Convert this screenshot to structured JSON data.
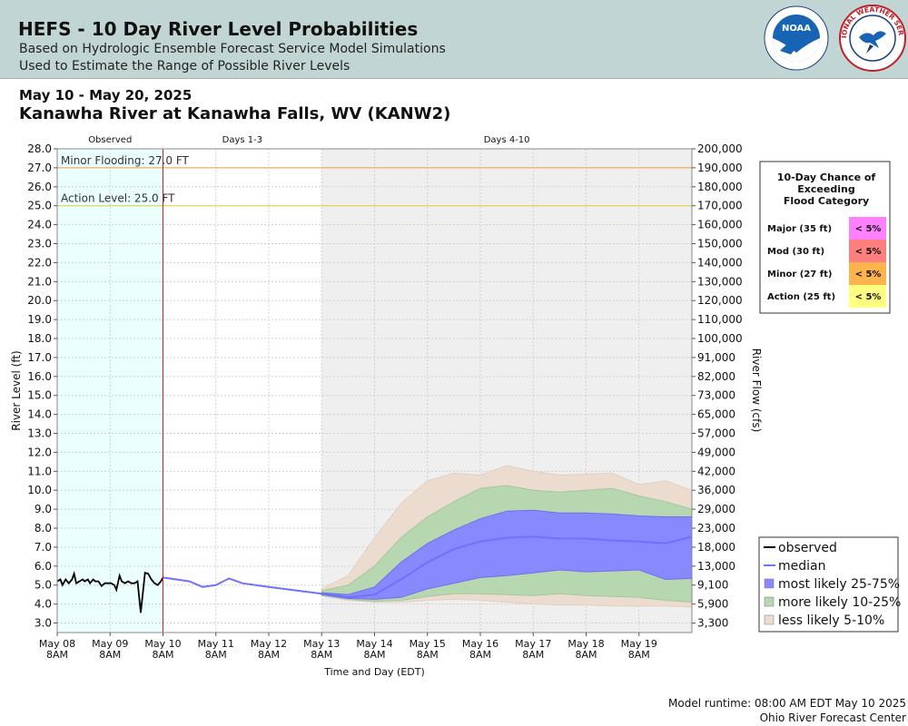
{
  "header": {
    "title": "HEFS - 10 Day River Level Probabilities",
    "subtitle1": "Based on Hydrologic Ensemble Forecast Service Model Simulations",
    "subtitle2": "Used to Estimate the Range of Possible River Levels",
    "noaa_logo_text": "NOAA",
    "nws_logo_text": "NATIONAL WEATHER SERVICE"
  },
  "date_range": "May 10 - May 20, 2025",
  "location": "Kanawha River at Kanawha Falls, WV (KANW2)",
  "footer": {
    "runtime": "Model runtime: 08:00 AM EDT May 10 2025",
    "center": "Ohio River Forecast Center"
  },
  "chart_data": {
    "type": "area",
    "period_labels": [
      "Observed",
      "Days 1-3",
      "Days 4-10"
    ],
    "ylabel": "River Level (ft)",
    "y2label": "River Flow (cfs)",
    "xlabel": "Time and Day (EDT)",
    "ylim": [
      2.5,
      28.0
    ],
    "y_ticks": [
      "3.0",
      "4.0",
      "5.0",
      "6.0",
      "7.0",
      "8.0",
      "9.0",
      "10.0",
      "11.0",
      "12.0",
      "13.0",
      "14.0",
      "15.0",
      "16.0",
      "17.0",
      "18.0",
      "19.0",
      "20.0",
      "21.0",
      "22.0",
      "23.0",
      "24.0",
      "25.0",
      "26.0",
      "27.0",
      "28.0"
    ],
    "y2_ticks": [
      {
        "stage": 3.0,
        "label": "3,300"
      },
      {
        "stage": 4.0,
        "label": "5,900"
      },
      {
        "stage": 5.0,
        "label": "9,100"
      },
      {
        "stage": 6.0,
        "label": "13,000"
      },
      {
        "stage": 7.0,
        "label": "18,000"
      },
      {
        "stage": 8.0,
        "label": "23,000"
      },
      {
        "stage": 9.0,
        "label": "29,000"
      },
      {
        "stage": 10.0,
        "label": "36,000"
      },
      {
        "stage": 11.0,
        "label": "42,000"
      },
      {
        "stage": 12.0,
        "label": "49,000"
      },
      {
        "stage": 13.0,
        "label": "57,000"
      },
      {
        "stage": 14.0,
        "label": "65,000"
      },
      {
        "stage": 15.0,
        "label": "73,000"
      },
      {
        "stage": 16.0,
        "label": "82,000"
      },
      {
        "stage": 17.0,
        "label": "91,000"
      },
      {
        "stage": 18.0,
        "label": "100,000"
      },
      {
        "stage": 19.0,
        "label": "110,000"
      },
      {
        "stage": 20.0,
        "label": "120,000"
      },
      {
        "stage": 21.0,
        "label": "130,000"
      },
      {
        "stage": 22.0,
        "label": "140,000"
      },
      {
        "stage": 23.0,
        "label": "150,000"
      },
      {
        "stage": 24.0,
        "label": "160,000"
      },
      {
        "stage": 25.0,
        "label": "170,000"
      },
      {
        "stage": 26.0,
        "label": "180,000"
      },
      {
        "stage": 27.0,
        "label": "190,000"
      },
      {
        "stage": 28.0,
        "label": "200,000"
      }
    ],
    "x_ticks": [
      {
        "line1": "May 08",
        "line2": "8AM"
      },
      {
        "line1": "May 09",
        "line2": "8AM"
      },
      {
        "line1": "May 10",
        "line2": "8AM"
      },
      {
        "line1": "May 11",
        "line2": "8AM"
      },
      {
        "line1": "May 12",
        "line2": "8AM"
      },
      {
        "line1": "May 13",
        "line2": "8AM"
      },
      {
        "line1": "May 14",
        "line2": "8AM"
      },
      {
        "line1": "May 15",
        "line2": "8AM"
      },
      {
        "line1": "May 16",
        "line2": "8AM"
      },
      {
        "line1": "May 17",
        "line2": "8AM"
      },
      {
        "line1": "May 18",
        "line2": "8AM"
      },
      {
        "line1": "May 19",
        "line2": "8AM"
      }
    ],
    "xlim": [
      0,
      12
    ],
    "x_units": "days since May 08 8AM",
    "thresholds": [
      {
        "label": "Minor Flooding: 27.0 FT",
        "value": 27.0,
        "color": "#f0a040"
      },
      {
        "label": "Action Level: 25.0 FT",
        "value": 25.0,
        "color": "#e8cc40"
      }
    ],
    "observed": [
      [
        0,
        5.2
      ],
      [
        0.06,
        5.3
      ],
      [
        0.1,
        5.0
      ],
      [
        0.16,
        5.3
      ],
      [
        0.22,
        5.1
      ],
      [
        0.28,
        5.3
      ],
      [
        0.32,
        5.6
      ],
      [
        0.36,
        5.1
      ],
      [
        0.42,
        5.2
      ],
      [
        0.48,
        5.3
      ],
      [
        0.52,
        5.2
      ],
      [
        0.58,
        5.3
      ],
      [
        0.62,
        5.1
      ],
      [
        0.68,
        5.3
      ],
      [
        0.72,
        5.2
      ],
      [
        0.78,
        5.2
      ],
      [
        0.84,
        4.95
      ],
      [
        0.9,
        5.1
      ],
      [
        0.96,
        5.1
      ],
      [
        1.02,
        5.1
      ],
      [
        1.08,
        5.0
      ],
      [
        1.12,
        4.75
      ],
      [
        1.18,
        5.5
      ],
      [
        1.22,
        5.2
      ],
      [
        1.28,
        5.1
      ],
      [
        1.34,
        5.2
      ],
      [
        1.4,
        5.1
      ],
      [
        1.46,
        5.1
      ],
      [
        1.52,
        5.2
      ],
      [
        1.58,
        3.55
      ],
      [
        1.66,
        5.65
      ],
      [
        1.72,
        5.6
      ],
      [
        1.78,
        5.3
      ],
      [
        1.84,
        5.1
      ],
      [
        1.9,
        5.0
      ],
      [
        1.96,
        5.2
      ],
      [
        2.0,
        5.4
      ]
    ],
    "median": [
      [
        2.0,
        5.4
      ],
      [
        2.5,
        5.2
      ],
      [
        2.75,
        4.9
      ],
      [
        3.0,
        5.0
      ],
      [
        3.25,
        5.35
      ],
      [
        3.5,
        5.1
      ],
      [
        4.0,
        4.9
      ],
      [
        5.0,
        4.55
      ],
      [
        5.5,
        4.35
      ],
      [
        6.0,
        4.5
      ],
      [
        6.5,
        5.3
      ],
      [
        7.0,
        6.2
      ],
      [
        7.5,
        6.9
      ],
      [
        8.0,
        7.3
      ],
      [
        8.5,
        7.5
      ],
      [
        9.0,
        7.55
      ],
      [
        9.5,
        7.45
      ],
      [
        10.0,
        7.45
      ],
      [
        10.5,
        7.35
      ],
      [
        11.0,
        7.3
      ],
      [
        11.5,
        7.2
      ],
      [
        12.0,
        7.55
      ]
    ],
    "band_25_75": {
      "upper": [
        [
          5.0,
          4.6
        ],
        [
          5.5,
          4.5
        ],
        [
          6.0,
          4.9
        ],
        [
          6.5,
          6.2
        ],
        [
          7.0,
          7.2
        ],
        [
          7.5,
          7.9
        ],
        [
          8.0,
          8.5
        ],
        [
          8.5,
          8.9
        ],
        [
          9.0,
          8.95
        ],
        [
          9.5,
          8.8
        ],
        [
          10.0,
          8.8
        ],
        [
          10.5,
          8.75
        ],
        [
          11.0,
          8.65
        ],
        [
          11.5,
          8.6
        ],
        [
          12.0,
          8.6
        ]
      ],
      "lower": [
        [
          5.0,
          4.5
        ],
        [
          5.5,
          4.3
        ],
        [
          6.0,
          4.25
        ],
        [
          6.5,
          4.35
        ],
        [
          7.0,
          4.8
        ],
        [
          7.5,
          5.1
        ],
        [
          8.0,
          5.4
        ],
        [
          8.5,
          5.5
        ],
        [
          9.0,
          5.65
        ],
        [
          9.5,
          5.8
        ],
        [
          10.0,
          5.7
        ],
        [
          10.5,
          5.75
        ],
        [
          11.0,
          5.8
        ],
        [
          11.5,
          5.3
        ],
        [
          12.0,
          5.35
        ]
      ]
    },
    "band_10_25": {
      "upper": [
        [
          5.0,
          4.7
        ],
        [
          5.5,
          5.0
        ],
        [
          6.0,
          6.0
        ],
        [
          6.5,
          7.5
        ],
        [
          7.0,
          8.6
        ],
        [
          7.5,
          9.4
        ],
        [
          8.0,
          10.1
        ],
        [
          8.5,
          10.25
        ],
        [
          9.0,
          10.0
        ],
        [
          9.5,
          9.9
        ],
        [
          10.0,
          10.0
        ],
        [
          10.5,
          10.1
        ],
        [
          11.0,
          9.7
        ],
        [
          11.5,
          9.4
        ],
        [
          12.0,
          9.0
        ]
      ],
      "lower": [
        [
          5.0,
          4.45
        ],
        [
          5.5,
          4.25
        ],
        [
          6.0,
          4.15
        ],
        [
          6.5,
          4.2
        ],
        [
          7.0,
          4.4
        ],
        [
          7.5,
          4.55
        ],
        [
          8.0,
          4.55
        ],
        [
          8.5,
          4.5
        ],
        [
          9.0,
          4.45
        ],
        [
          9.5,
          4.55
        ],
        [
          10.0,
          4.45
        ],
        [
          10.5,
          4.4
        ],
        [
          11.0,
          4.35
        ],
        [
          11.5,
          4.2
        ],
        [
          12.0,
          4.1
        ]
      ]
    },
    "band_5_10": {
      "upper": [
        [
          5.0,
          4.8
        ],
        [
          5.5,
          5.5
        ],
        [
          6.0,
          7.5
        ],
        [
          6.5,
          9.3
        ],
        [
          7.0,
          10.5
        ],
        [
          7.5,
          10.9
        ],
        [
          8.0,
          10.8
        ],
        [
          8.5,
          11.3
        ],
        [
          9.0,
          11.0
        ],
        [
          9.5,
          10.8
        ],
        [
          10.0,
          10.85
        ],
        [
          10.5,
          10.9
        ],
        [
          11.0,
          10.3
        ],
        [
          11.5,
          10.5
        ],
        [
          12.0,
          10.0
        ]
      ],
      "lower": [
        [
          5.0,
          4.45
        ],
        [
          5.5,
          4.2
        ],
        [
          6.0,
          4.1
        ],
        [
          6.5,
          4.1
        ],
        [
          7.0,
          4.2
        ],
        [
          7.5,
          4.25
        ],
        [
          8.0,
          4.2
        ],
        [
          8.5,
          4.1
        ],
        [
          9.0,
          4.0
        ],
        [
          9.5,
          3.95
        ],
        [
          10.0,
          3.95
        ],
        [
          10.5,
          3.9
        ],
        [
          11.0,
          3.9
        ],
        [
          11.5,
          3.9
        ],
        [
          12.0,
          3.85
        ]
      ]
    },
    "legend": [
      {
        "label": "observed",
        "kind": "line",
        "color": "#000000"
      },
      {
        "label": "median",
        "kind": "line",
        "color": "#7070ff"
      },
      {
        "label": "most likely 25-75%",
        "kind": "box",
        "color": "#8888ff"
      },
      {
        "label": "more likely 10-25%",
        "kind": "box",
        "color": "#b7d7b0"
      },
      {
        "label": "less likely 5-10%",
        "kind": "box",
        "color": "#ecdccf"
      }
    ],
    "exceedance_table": {
      "title_lines": [
        "10-Day Chance of",
        "Exceeding",
        "Flood Category"
      ],
      "rows": [
        {
          "category": "Major (35 ft)",
          "chance": "< 5%",
          "color": "#ff80ff"
        },
        {
          "category": "Mod (30 ft)",
          "chance": "< 5%",
          "color": "#ff7f7f"
        },
        {
          "category": "Minor (27 ft)",
          "chance": "< 5%",
          "color": "#ffb34d"
        },
        {
          "category": "Action (25 ft)",
          "chance": "< 5%",
          "color": "#ffff80"
        }
      ]
    },
    "grid": true,
    "legend_position": "bottom-right"
  }
}
